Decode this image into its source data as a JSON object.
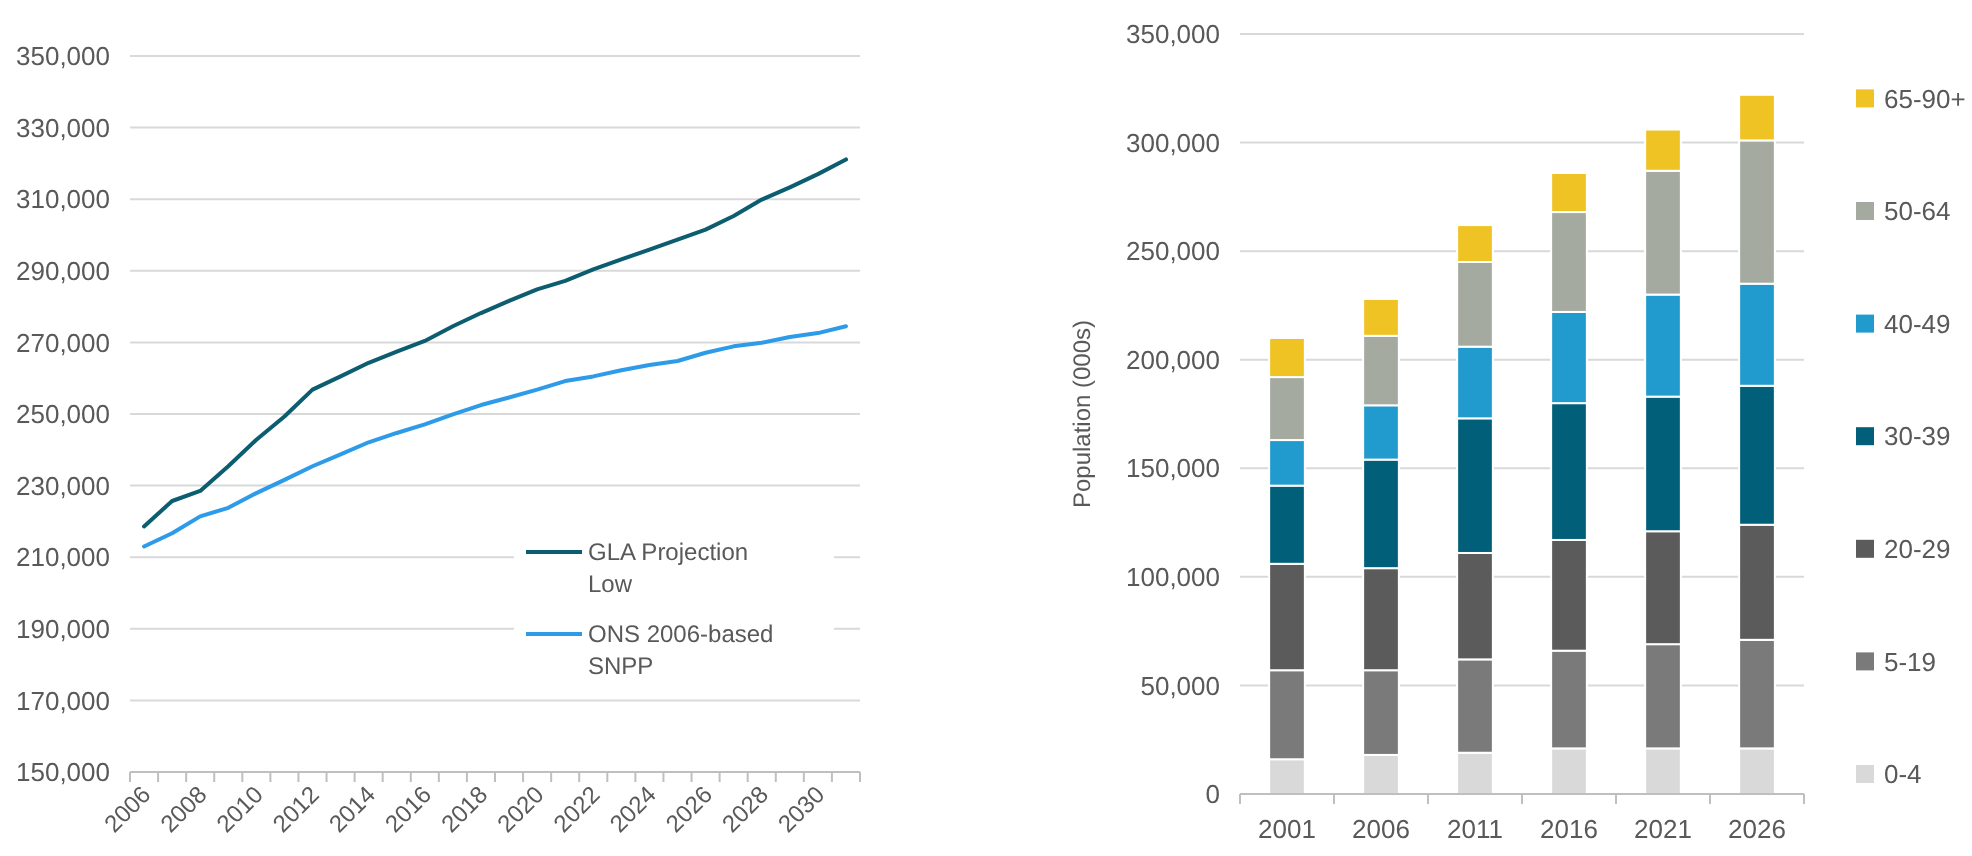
{
  "chart_data": [
    {
      "type": "line",
      "categories": [
        "2006",
        null,
        "2008",
        null,
        "2010",
        null,
        "2012",
        null,
        "2014",
        null,
        "2016",
        null,
        "2018",
        null,
        "2020",
        null,
        "2022",
        null,
        "2024",
        null,
        "2026",
        null,
        "2028",
        null,
        "2030",
        null
      ],
      "series": [
        {
          "name": "GLA Projection Low",
          "color": "#0b5d6f",
          "values": [
            218600,
            225700,
            228500,
            235400,
            242800,
            249300,
            256800,
            260500,
            264300,
            267400,
            270400,
            274500,
            278200,
            281600,
            284800,
            287200,
            290400,
            293200,
            295900,
            298700,
            301500,
            305300,
            309900,
            313300,
            317000,
            321100
          ]
        },
        {
          "name": "ONS 2006-based SNPP",
          "color": "#2d9be8",
          "values": [
            213000,
            216700,
            221400,
            223800,
            227900,
            231600,
            235400,
            238700,
            242100,
            244700,
            247100,
            249900,
            252500,
            254600,
            256800,
            259200,
            260500,
            262200,
            263700,
            264800,
            267100,
            268900,
            269900,
            271500,
            272600,
            274500
          ]
        }
      ],
      "ylim": [
        150000,
        350000
      ],
      "yticks": [
        {
          "value": 150000,
          "label": "150,000"
        },
        {
          "value": 170000,
          "label": "170,000"
        },
        {
          "value": 190000,
          "label": "190,000"
        },
        {
          "value": 210000,
          "label": "210,000"
        },
        {
          "value": 230000,
          "label": "230,000"
        },
        {
          "value": 250000,
          "label": "250,000"
        },
        {
          "value": 270000,
          "label": "270,000"
        },
        {
          "value": 290000,
          "label": "290,000"
        },
        {
          "value": 310000,
          "label": "310,000"
        },
        {
          "value": 330000,
          "label": "330,000"
        },
        {
          "value": 350000,
          "label": "350,000"
        }
      ],
      "grid": "y",
      "legend": "right",
      "marker": "none",
      "line_style": "solid"
    },
    {
      "type": "bar",
      "stacked": true,
      "ylabel": "Population (000s)",
      "categories": [
        "2001",
        "2006",
        "2011",
        "2016",
        "2021",
        "2026"
      ],
      "series": [
        {
          "name": "0-4",
          "color": "#d9d9d9",
          "values": [
            16000,
            18000,
            19000,
            21000,
            21000,
            21000
          ]
        },
        {
          "name": "5-19",
          "color": "#7a7a7a",
          "values": [
            41000,
            39000,
            43000,
            45000,
            48000,
            50000
          ]
        },
        {
          "name": "20-29",
          "color": "#5b5b5b",
          "values": [
            49000,
            47000,
            49000,
            51000,
            52000,
            53000
          ]
        },
        {
          "name": "30-39",
          "color": "#015f7a",
          "values": [
            36000,
            50000,
            62000,
            63000,
            62000,
            64000
          ]
        },
        {
          "name": "40-49",
          "color": "#219bcd",
          "values": [
            21000,
            25000,
            33000,
            42000,
            47000,
            47000
          ]
        },
        {
          "name": "50-64",
          "color": "#a5aaa1",
          "values": [
            29000,
            32000,
            39000,
            46000,
            57000,
            66000
          ]
        },
        {
          "name": "65-90+",
          "color": "#f0c324",
          "values": [
            18000,
            17000,
            17000,
            18000,
            19000,
            21000
          ]
        }
      ],
      "ylim": [
        0,
        350000
      ],
      "yticks": [
        {
          "value": 0,
          "label": "0"
        },
        {
          "value": 50000,
          "label": "50,000"
        },
        {
          "value": 100000,
          "label": "100,000"
        },
        {
          "value": 150000,
          "label": "150,000"
        },
        {
          "value": 200000,
          "label": "200,000"
        },
        {
          "value": 250000,
          "label": "250,000"
        },
        {
          "value": 300000,
          "label": "300,000"
        },
        {
          "value": 350000,
          "label": "350,000"
        }
      ],
      "grid": "y",
      "legend": "right"
    }
  ]
}
